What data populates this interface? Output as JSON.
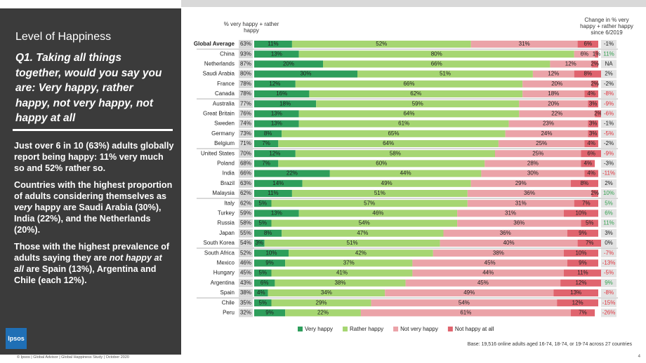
{
  "left_panel": {
    "title": "Level of Happiness",
    "question": "Q1. Taking all things together, would you say you are: Very happy, rather happy, not very happy, not happy at all",
    "paragraphs": [
      [
        {
          "text": "Just over 6 in 10 (63%) adults globally report being happy: 11% very much so and 52% rather so."
        }
      ],
      [
        {
          "text": "Countries with the highest proportion of adults considering themselves as "
        },
        {
          "text": "very",
          "italic": true
        },
        {
          "text": " happy are Saudi Arabia (30%), India (22%), and the Netherlands (20%)."
        }
      ],
      [
        {
          "text": "Those with the highest prevalence of adults saying they are "
        },
        {
          "text": "not happy at all",
          "italic": true
        },
        {
          "text": " are Spain (13%), Argentina and Chile (each 12%)."
        }
      ]
    ]
  },
  "chart_data": {
    "type": "stacked-bar",
    "total_header": "% very happy + rather happy",
    "change_header": "Change in % very happy + rather happy since 6/2019",
    "xlim": [
      0,
      100
    ],
    "categories": [
      "Global Average",
      "China",
      "Netherlands",
      "Saudi Arabia",
      "France",
      "Canada",
      "Australia",
      "Great Britain",
      "Sweden",
      "Germany",
      "Belgium",
      "United States",
      "Poland",
      "India",
      "Brazil",
      "Malaysia",
      "Italy",
      "Turkey",
      "Russia",
      "Japan",
      "South Korea",
      "South Africa",
      "Mexico",
      "Hungary",
      "Argentina",
      "Spain",
      "Chile",
      "Peru"
    ],
    "series": [
      {
        "name": "Very happy",
        "color": "#2e9e5b",
        "values": [
          11,
          13,
          20,
          30,
          12,
          16,
          18,
          13,
          13,
          8,
          7,
          12,
          7,
          22,
          14,
          11,
          5,
          13,
          5,
          8,
          3,
          10,
          9,
          5,
          6,
          4,
          5,
          9
        ],
        "value_labels": [
          "11%",
          "13%",
          "20%",
          "30%",
          "12%",
          "16%",
          "18%",
          "13%",
          "13%",
          "8%",
          "7%",
          "12%",
          "7%",
          "22%",
          "14%",
          "11%",
          "5%",
          "13%",
          "5%",
          "8%",
          "3%",
          "10%",
          "9%",
          "5%",
          "6%",
          "4%",
          "5%",
          "9%"
        ]
      },
      {
        "name": "Rather happy",
        "color": "#a6d672",
        "values": [
          52,
          80,
          66,
          51,
          66,
          62,
          59,
          64,
          61,
          65,
          64,
          58,
          60,
          44,
          49,
          51,
          57,
          46,
          54,
          47,
          51,
          42,
          37,
          41,
          38,
          34,
          29,
          22
        ],
        "value_labels": [
          "52%",
          "80%",
          "66%",
          "51%",
          "66%",
          "62%",
          "59%",
          "64%",
          "61%",
          "65%",
          "64%",
          "58%",
          "60%",
          "44%",
          "49%",
          "51%",
          "57%",
          "46%",
          "54%",
          "47%",
          "51%",
          "42%",
          "37%",
          "41%",
          "38%",
          "34%",
          "29%",
          "22%"
        ]
      },
      {
        "name": "Not very happy",
        "color": "#eba3a8",
        "values": [
          31,
          6,
          12,
          12,
          20,
          18,
          20,
          22,
          23,
          24,
          25,
          25,
          28,
          30,
          29,
          36,
          31,
          31,
          36,
          36,
          40,
          38,
          45,
          44,
          45,
          49,
          54,
          61
        ],
        "value_labels": [
          "31%",
          "6%",
          "12%",
          "12%",
          "20%",
          "18%",
          "20%",
          "22%",
          "23%",
          "24%",
          "25%",
          "25%",
          "28%",
          "30%",
          "29%",
          "36%",
          "31%",
          "31%",
          "36%",
          "36%",
          "40%",
          "38%",
          "45%",
          "44%",
          "45%",
          "49%",
          "54%",
          "61%"
        ]
      },
      {
        "name": "Not happy at all",
        "color": "#e0646e",
        "values": [
          6,
          1,
          2,
          8,
          2,
          4,
          3,
          2,
          3,
          3,
          4,
          6,
          4,
          4,
          8,
          2,
          7,
          10,
          5,
          9,
          7,
          10,
          9,
          11,
          12,
          13,
          12,
          7
        ],
        "value_labels": [
          "6%",
          "1%",
          "2%",
          "8%",
          "2%",
          "4%",
          "3%",
          "2%",
          "3%",
          "3%",
          "4%",
          "6%",
          "4%",
          "4%",
          "8%",
          "2%",
          "7%",
          "10%",
          "5%",
          "9%",
          "7%",
          "10%",
          "9%",
          "11%",
          "12%",
          "13%",
          "12%",
          "7%"
        ]
      }
    ],
    "totals": {
      "values": [
        63,
        93,
        87,
        80,
        78,
        78,
        77,
        76,
        74,
        73,
        71,
        70,
        68,
        66,
        63,
        62,
        62,
        59,
        58,
        55,
        54,
        52,
        46,
        45,
        43,
        38,
        35,
        32
      ],
      "value_labels": [
        "63%",
        "93%",
        "87%",
        "80%",
        "78%",
        "78%",
        "77%",
        "76%",
        "74%",
        "73%",
        "71%",
        "70%",
        "68%",
        "66%",
        "63%",
        "62%",
        "62%",
        "59%",
        "58%",
        "55%",
        "54%",
        "52%",
        "46%",
        "45%",
        "43%",
        "38%",
        "35%",
        "32%"
      ]
    },
    "change": {
      "values": [
        -1,
        11,
        null,
        2,
        -2,
        -8,
        -9,
        -6,
        -1,
        -5,
        -2,
        -9,
        -3,
        -11,
        2,
        10,
        5,
        6,
        11,
        3,
        0,
        -7,
        -13,
        -5,
        9,
        -8,
        -15,
        -26
      ],
      "value_labels": [
        "-1%",
        "11%",
        "NA",
        "2%",
        "-2%",
        "-8%",
        "-9%",
        "-6%",
        "-1%",
        "-5%",
        "-2%",
        "-9%",
        "-3%",
        "-11%",
        "2%",
        "10%",
        "5%",
        "6%",
        "11%",
        "3%",
        "0%",
        "-7%",
        "-13%",
        "-5%",
        "9%",
        "-8%",
        "-15%",
        "-26%"
      ]
    },
    "base_note": "Base: 19,516 online adults aged 16-74, 18-74, or 19-74 across 27 countries"
  },
  "footer": {
    "text": "© Ipsos | Global Advisor | Global Happiness Study | October 2020",
    "page": "4",
    "logo": "Ipsos"
  }
}
